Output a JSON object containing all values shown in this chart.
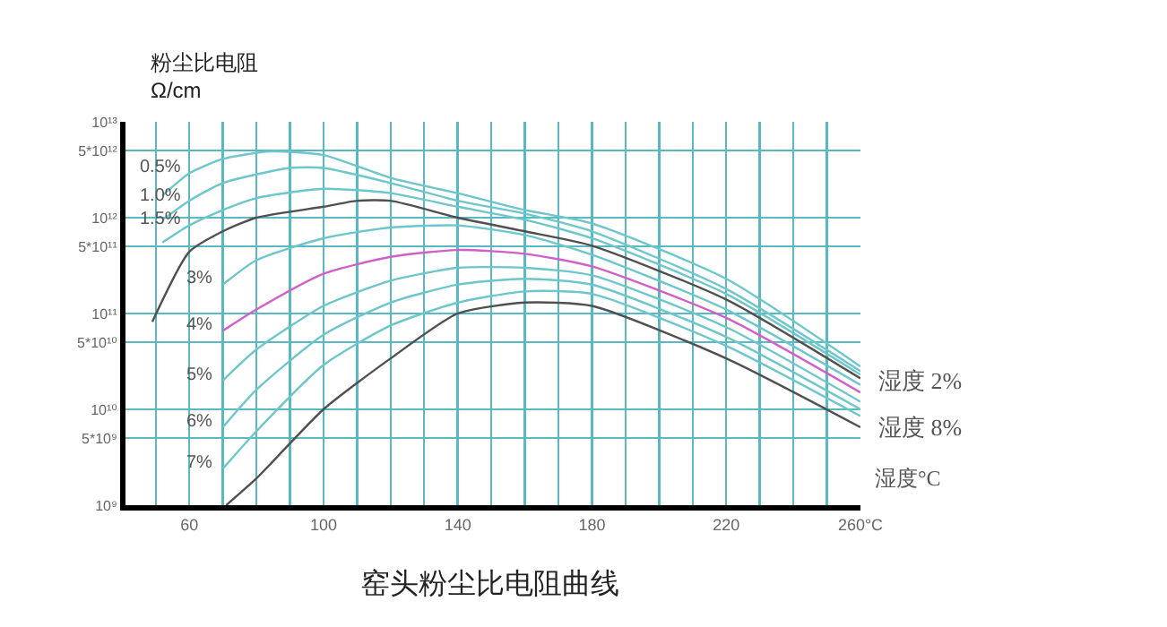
{
  "chart_data": {
    "type": "line",
    "title": "窑头粉尘比电阻曲线",
    "ylabel": "粉尘比电阻\nΩ/cm",
    "xlabel": "湿度°C",
    "log": true,
    "grid": true,
    "marker": "none",
    "line_style": "solid",
    "xlim": [
      41,
      260
    ],
    "xticks": [
      {
        "value": 50,
        "label": null
      },
      60,
      {
        "value": 70,
        "label": null
      },
      {
        "value": 80,
        "label": null
      },
      {
        "value": 90,
        "label": null
      },
      100,
      {
        "value": 110,
        "label": null
      },
      {
        "value": 120,
        "label": null
      },
      {
        "value": 130,
        "label": null
      },
      140,
      {
        "value": 150,
        "label": null
      },
      {
        "value": 160,
        "label": null
      },
      {
        "value": 170,
        "label": null
      },
      180,
      {
        "value": 190,
        "label": null
      },
      {
        "value": 200,
        "label": null
      },
      {
        "value": 210,
        "label": null
      },
      220,
      {
        "value": 230,
        "label": null
      },
      {
        "value": 240,
        "label": null
      },
      {
        "value": 250,
        "label": null
      },
      {
        "value": 260,
        "label": "260°C"
      }
    ],
    "ylim": [
      1000000000.0,
      10000000000000.0
    ],
    "yticks": [
      {
        "value": 1000000000.0,
        "label": "10⁹"
      },
      {
        "value": 5000000000.0,
        "label": "5*10⁹"
      },
      {
        "value": 10000000000.0,
        "label": "10¹⁰"
      },
      {
        "value": 50000000000.0,
        "label": "5*10¹⁰"
      },
      {
        "value": 100000000000.0,
        "label": "10¹¹"
      },
      {
        "value": 500000000000.0,
        "label": "5*10¹¹"
      },
      {
        "value": 1000000000000.0,
        "label": "10¹²"
      },
      {
        "value": 5000000000000.0,
        "label": "5*10¹²"
      },
      {
        "value": 10000000000000.0,
        "label": "10¹³"
      }
    ],
    "series": [
      {
        "color": "#6cc6cc",
        "x": [
          52,
          60,
          70,
          84,
          100,
          120,
          140,
          160,
          180,
          220,
          260
        ],
        "values": [
          1700000000000.0,
          2900000000000.0,
          4100000000000.0,
          4900000000000.0,
          4500000000000.0,
          2600000000000.0,
          1800000000000.0,
          1200000000000.0,
          870000000000.0,
          230000000000.0,
          28000000000.0
        ]
      },
      {
        "color": "#6cc6cc",
        "x": [
          52,
          60,
          70,
          90,
          100,
          120,
          140,
          160,
          180,
          220,
          260
        ],
        "values": [
          950000000000.0,
          1500000000000.0,
          2300000000000.0,
          3300000000000.0,
          3300000000000.0,
          2300000000000.0,
          1500000000000.0,
          1100000000000.0,
          720000000000.0,
          180000000000.0,
          25000000000.0
        ]
      },
      {
        "color": "#6cc6cc",
        "x": [
          52,
          60,
          70,
          80,
          100,
          120,
          140,
          160,
          180,
          220,
          260
        ],
        "values": [
          550000000000.0,
          830000000000.0,
          1200000000000.0,
          1600000000000.0,
          2000000000000.0,
          1800000000000.0,
          1300000000000.0,
          950000000000.0,
          610000000000.0,
          160000000000.0,
          23000000000.0
        ]
      },
      {
        "color": "#505050",
        "x": [
          49,
          60,
          70,
          80,
          100,
          110,
          120,
          140,
          160,
          180,
          220,
          260
        ],
        "values": [
          82000000000.0,
          440000000000.0,
          720000000000.0,
          1000000000000.0,
          1300000000000.0,
          1500000000000.0,
          1500000000000.0,
          1000000000000.0,
          720000000000.0,
          510000000000.0,
          140000000000.0,
          21000000000.0
        ]
      },
      {
        "color": "#6cc6cc",
        "x": [
          70,
          80,
          100,
          120,
          140,
          160,
          180,
          220,
          260
        ],
        "values": [
          200000000000.0,
          360000000000.0,
          610000000000.0,
          790000000000.0,
          830000000000.0,
          660000000000.0,
          410000000000.0,
          110000000000.0,
          18000000000.0
        ]
      },
      {
        "color": "#d060c8",
        "x": [
          70,
          80,
          100,
          120,
          140,
          160,
          180,
          220,
          260
        ],
        "values": [
          66000000000.0,
          110000000000.0,
          260000000000.0,
          390000000000.0,
          460000000000.0,
          420000000000.0,
          310000000000.0,
          90000000000.0,
          15000000000.0
        ]
      },
      {
        "color": "#6cc6cc",
        "x": [
          70,
          80,
          100,
          120,
          140,
          160,
          180,
          220,
          260
        ],
        "values": [
          20000000000.0,
          42000000000.0,
          120000000000.0,
          220000000000.0,
          300000000000.0,
          300000000000.0,
          250000000000.0,
          72000000000.0,
          12000000000.0
        ]
      },
      {
        "color": "#6cc6cc",
        "x": [
          70,
          80,
          100,
          120,
          140,
          160,
          180,
          220,
          260
        ],
        "values": [
          6500000000.0,
          16000000000.0,
          60000000000.0,
          130000000000.0,
          200000000000.0,
          230000000000.0,
          200000000000.0,
          57000000000.0,
          10000000000.0
        ]
      },
      {
        "color": "#6cc6cc",
        "x": [
          70,
          80,
          100,
          120,
          140,
          160,
          180,
          220,
          260
        ],
        "values": [
          2400000000.0,
          5900000000.0,
          29000000000.0,
          75000000000.0,
          130000000000.0,
          170000000000.0,
          160000000000.0,
          46000000000.0,
          8500000000.0
        ]
      },
      {
        "color": "#505050",
        "x": [
          71,
          80,
          100,
          120,
          140,
          160,
          180,
          220,
          260
        ],
        "values": [
          1000000000.0,
          1900000000.0,
          10000000000.0,
          34000000000.0,
          100000000000.0,
          130000000000.0,
          120000000000.0,
          34000000000.0,
          6500000000.0
        ]
      }
    ],
    "annotations": [
      {
        "text": "0.5%",
        "x": 60,
        "y": 2900000000000.0
      },
      {
        "text": "1.0%",
        "x": 60,
        "y": 1500000000000.0
      },
      {
        "text": "1.5%",
        "x": 60,
        "y": 830000000000.0
      },
      {
        "text": "3%",
        "x": 70,
        "y": 200000000000.0
      },
      {
        "text": "4%",
        "x": 70,
        "y": 66000000000.0
      },
      {
        "text": "5%",
        "x": 70,
        "y": 20000000000.0
      },
      {
        "text": "6%",
        "x": 70,
        "y": 6500000000.0
      },
      {
        "text": "7%",
        "x": 70,
        "y": 2400000000.0
      },
      {
        "text": "湿度 2%",
        "x": 260,
        "y": 20000000000.0
      },
      {
        "text": "湿度 8%",
        "x": 260,
        "y": 6500000000.0
      }
    ]
  }
}
